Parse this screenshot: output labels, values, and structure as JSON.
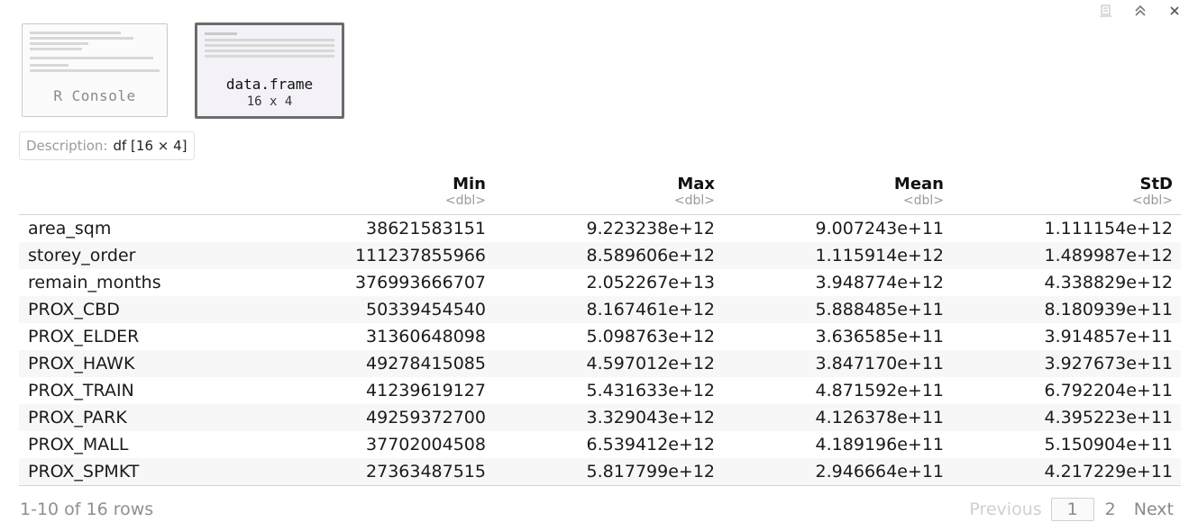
{
  "window_controls": {
    "icons": [
      "clear-console-icon",
      "collapse-up-icon",
      "close-icon"
    ]
  },
  "thumbnails": [
    {
      "label": "R Console",
      "active": false
    },
    {
      "label": "data.frame",
      "sublabel": "16 x 4",
      "active": true
    }
  ],
  "description": {
    "label": "Description:",
    "value": "df [16 × 4]"
  },
  "table": {
    "columns": [
      {
        "name": "Min",
        "type": "<dbl>"
      },
      {
        "name": "Max",
        "type": "<dbl>"
      },
      {
        "name": "Mean",
        "type": "<dbl>"
      },
      {
        "name": "StD",
        "type": "<dbl>"
      }
    ],
    "rows": [
      {
        "name": "area_sqm",
        "values": [
          "38621583151",
          "9.223238e+12",
          "9.007243e+11",
          "1.111154e+12"
        ]
      },
      {
        "name": "storey_order",
        "values": [
          "111237855966",
          "8.589606e+12",
          "1.115914e+12",
          "1.489987e+12"
        ]
      },
      {
        "name": "remain_months",
        "values": [
          "376993666707",
          "2.052267e+13",
          "3.948774e+12",
          "4.338829e+12"
        ]
      },
      {
        "name": "PROX_CBD",
        "values": [
          "50339454540",
          "8.167461e+12",
          "5.888485e+11",
          "8.180939e+11"
        ]
      },
      {
        "name": "PROX_ELDER",
        "values": [
          "31360648098",
          "5.098763e+12",
          "3.636585e+11",
          "3.914857e+11"
        ]
      },
      {
        "name": "PROX_HAWK",
        "values": [
          "49278415085",
          "4.597012e+12",
          "3.847170e+11",
          "3.927673e+11"
        ]
      },
      {
        "name": "PROX_TRAIN",
        "values": [
          "41239619127",
          "5.431633e+12",
          "4.871592e+11",
          "6.792204e+11"
        ]
      },
      {
        "name": "PROX_PARK",
        "values": [
          "49259372700",
          "3.329043e+12",
          "4.126378e+11",
          "4.395223e+11"
        ]
      },
      {
        "name": "PROX_MALL",
        "values": [
          "37702004508",
          "6.539412e+12",
          "4.189196e+11",
          "5.150904e+11"
        ]
      },
      {
        "name": "PROX_SPMKT",
        "values": [
          "27363487515",
          "5.817799e+12",
          "2.946664e+11",
          "4.217229e+11"
        ]
      }
    ]
  },
  "footer": {
    "row_info": "1-10 of 16 rows",
    "previous": "Previous",
    "current_page": "1",
    "page_2": "2",
    "next": "Next"
  }
}
